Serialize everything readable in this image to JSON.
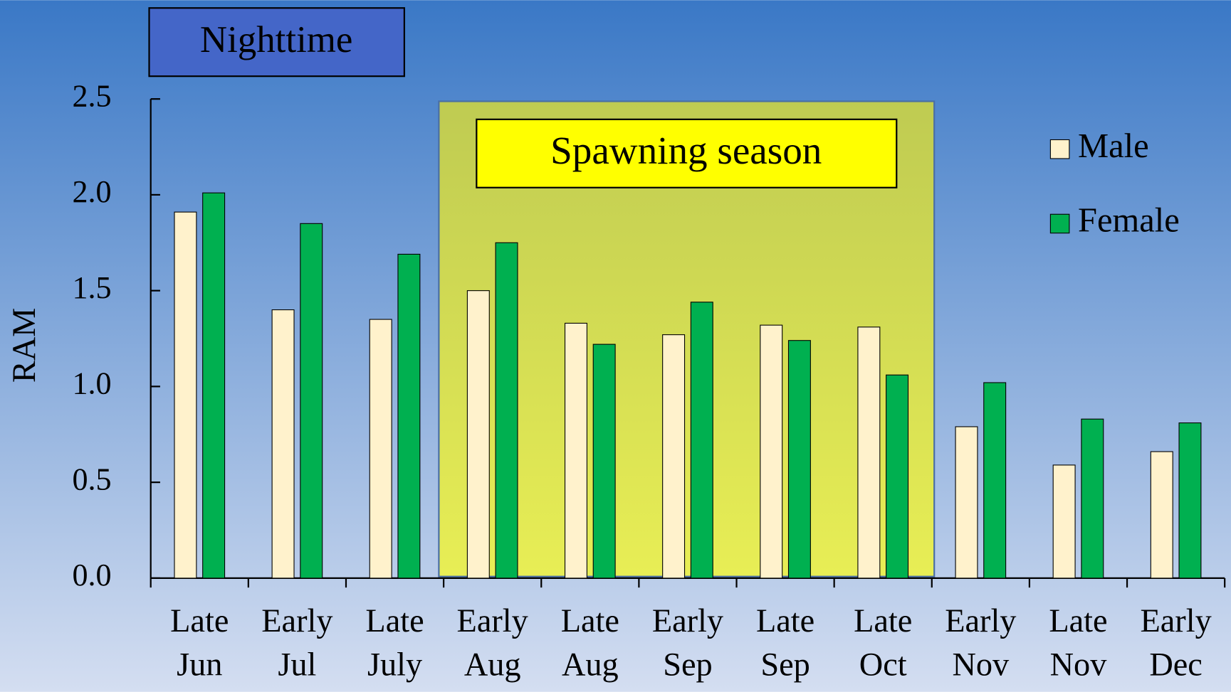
{
  "chart_data": {
    "type": "bar",
    "annotations": [
      "Nighttime",
      "Spawning season"
    ],
    "y_label": "RAM",
    "categories": [
      "Late Jun",
      "Early Jul",
      "Late July",
      "Early Aug",
      "Late Aug",
      "Early Sep",
      "Late Sep",
      "Late Oct",
      "Early Nov",
      "Late Nov",
      "Early Dec"
    ],
    "series": [
      {
        "name": "Male",
        "color": "#fff2cc",
        "values": [
          1.91,
          1.4,
          1.35,
          1.5,
          1.33,
          1.27,
          1.32,
          1.31,
          0.79,
          0.59,
          0.66
        ]
      },
      {
        "name": "Female",
        "color": "#00b050",
        "values": [
          2.01,
          1.85,
          1.69,
          1.75,
          1.22,
          1.44,
          1.24,
          1.06,
          1.02,
          0.83,
          0.81
        ]
      }
    ],
    "ylim": [
      0,
      2.5
    ],
    "yticks": [
      {
        "value": 0,
        "label": "0.0"
      },
      0.5,
      {
        "value": 1,
        "label": "1.0"
      },
      1.5,
      {
        "value": 2,
        "label": "2.0"
      },
      2.5
    ],
    "legend": "upper right"
  }
}
